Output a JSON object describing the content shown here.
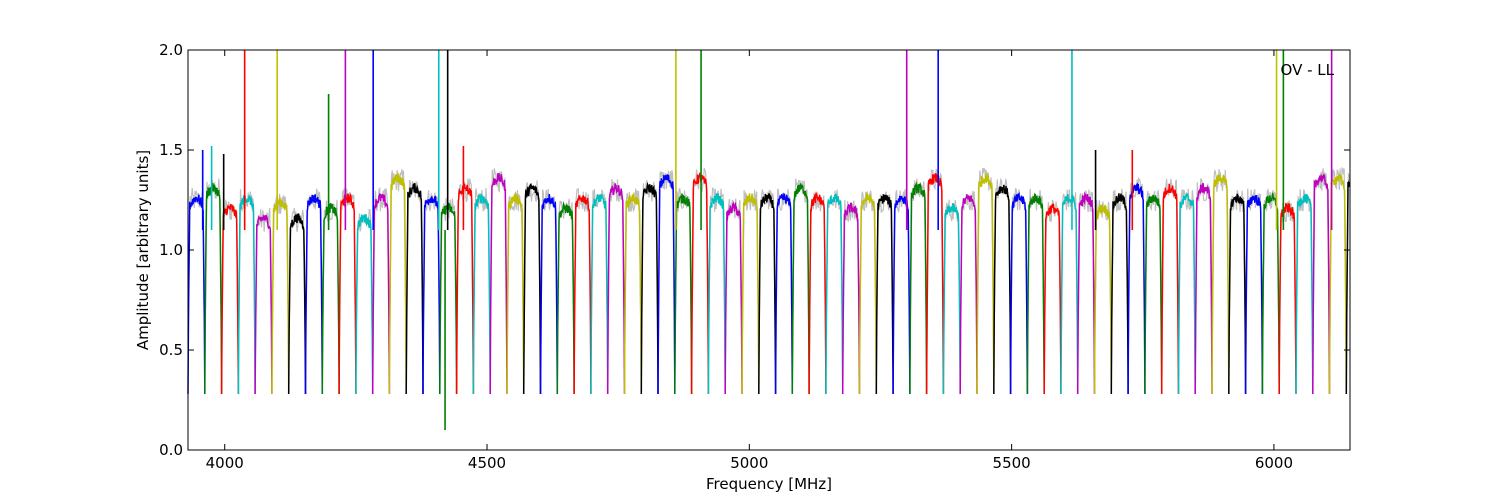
{
  "chart_data": {
    "type": "line",
    "title": "",
    "annotation": "OV - LL",
    "xlabel": "Frequency [MHz]",
    "ylabel": "Amplitude [arbitrary units]",
    "xlim": [
      3930,
      6145
    ],
    "ylim": [
      0,
      2.0
    ],
    "xticks": [
      4000,
      4500,
      5000,
      5500,
      6000
    ],
    "yticks": [
      0.0,
      0.5,
      1.0,
      1.5,
      2.0
    ],
    "xtick_labels": [
      "4000",
      "4500",
      "5000",
      "5500",
      "6000"
    ],
    "ytick_labels": [
      "0.0",
      "0.5",
      "1.0",
      "1.5",
      "2.0"
    ],
    "grid": false,
    "background_trace_color": "#bfbfbf",
    "series_color_cycle": [
      "#0000ff",
      "#008000",
      "#ff0000",
      "#00bfbf",
      "#bf00bf",
      "#bfbf00",
      "#000000"
    ],
    "series_description": "Many overlapping spectral-window bandpass traces (~1.0-1.3 in band, dropping to ~0.25-0.35 at each window edge, window width ~32 MHz), colored in a repeating cycle; spikes to 2.0 at RFI frequencies.",
    "window_start_mhz": 3930,
    "window_width_mhz": 32,
    "window_count": 70,
    "band_levels": [
      1.2,
      1.25,
      1.15,
      1.2,
      1.1,
      1.18,
      1.1,
      1.2,
      1.15,
      1.2,
      1.1,
      1.2,
      1.3,
      1.25,
      1.2,
      1.15,
      1.25,
      1.2,
      1.3,
      1.2,
      1.25,
      1.2,
      1.15,
      1.2,
      1.2,
      1.25,
      1.2,
      1.25,
      1.3,
      1.2,
      1.3,
      1.2,
      1.15,
      1.2,
      1.2,
      1.2,
      1.25,
      1.2,
      1.2,
      1.15,
      1.2,
      1.2,
      1.2,
      1.25,
      1.3,
      1.15,
      1.2,
      1.3,
      1.25,
      1.2,
      1.2,
      1.15,
      1.2,
      1.2,
      1.15,
      1.2,
      1.25,
      1.2,
      1.25,
      1.2,
      1.25,
      1.3,
      1.2,
      1.2,
      1.2,
      1.15,
      1.2,
      1.3,
      1.3,
      1.3
    ],
    "spikes": [
      {
        "x": 3958,
        "y": 1.5
      },
      {
        "x": 3975,
        "y": 1.52
      },
      {
        "x": 3998,
        "y": 1.48
      },
      {
        "x": 4038,
        "y": 2.0
      },
      {
        "x": 4100,
        "y": 2.0
      },
      {
        "x": 4198,
        "y": 1.78
      },
      {
        "x": 4230,
        "y": 2.0
      },
      {
        "x": 4283,
        "y": 2.0
      },
      {
        "x": 4408,
        "y": 2.0
      },
      {
        "x": 4425,
        "y": 2.0
      },
      {
        "x": 4455,
        "y": 1.52
      },
      {
        "x": 4860,
        "y": 2.0
      },
      {
        "x": 4908,
        "y": 2.0
      },
      {
        "x": 5300,
        "y": 2.0
      },
      {
        "x": 5360,
        "y": 2.0
      },
      {
        "x": 5615,
        "y": 2.0
      },
      {
        "x": 5660,
        "y": 1.5
      },
      {
        "x": 5730,
        "y": 1.5
      },
      {
        "x": 6005,
        "y": 2.0
      },
      {
        "x": 6018,
        "y": 2.0
      },
      {
        "x": 6110,
        "y": 2.0
      }
    ],
    "dips": [
      {
        "x": 4420,
        "y": 0.1
      }
    ]
  }
}
